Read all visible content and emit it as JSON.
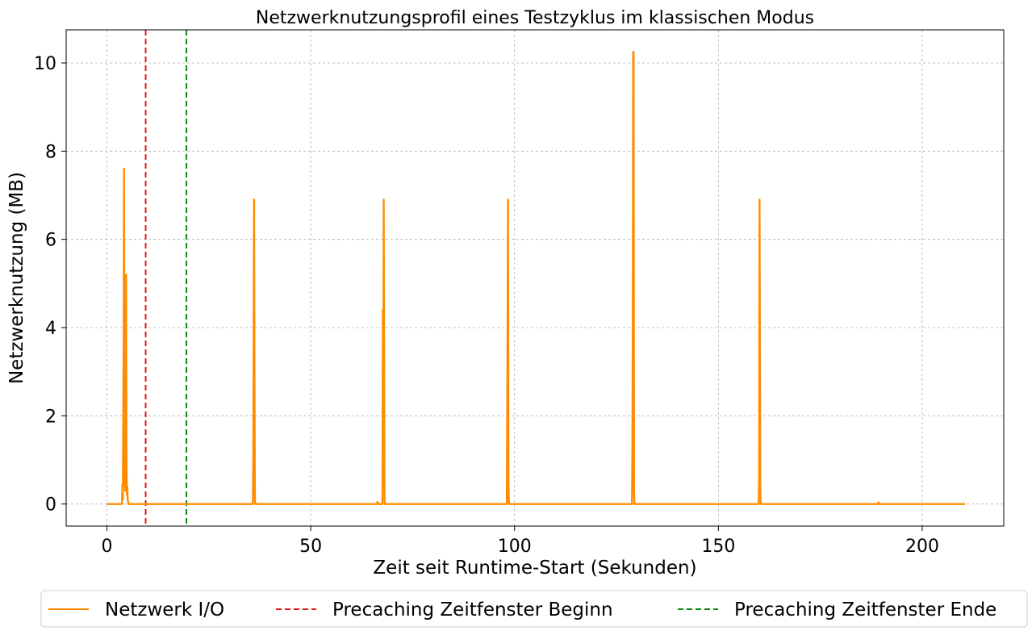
{
  "chart_data": {
    "type": "line",
    "title": "Netzwerknutzungsprofil eines Testzyklus im klassischen Modus",
    "xlabel": "Zeit seit Runtime-Start (Sekunden)",
    "ylabel": "Netzwerknutzung (MB)",
    "xlim": [
      -10,
      220
    ],
    "ylim": [
      -0.5,
      10.75
    ],
    "xticks": [
      0,
      50,
      100,
      150,
      200
    ],
    "yticks": [
      0,
      2,
      4,
      6,
      8,
      10
    ],
    "grid": true,
    "legend_position": "bottom-center",
    "series": [
      {
        "name": "Netzwerk I/O",
        "color": "#ff8c00",
        "x": [
          0,
          3.7,
          3.8,
          3.9,
          4.0,
          4.1,
          4.2,
          4.3,
          4.4,
          4.5,
          4.6,
          4.7,
          4.8,
          4.9,
          5.0,
          5.1,
          5.2,
          5.3,
          35.8,
          35.9,
          36.0,
          36.1,
          36.2,
          36.3,
          36.4,
          66.3,
          66.4,
          66.5,
          67.6,
          67.7,
          67.8,
          67.9,
          68.0,
          68.1,
          68.2,
          98.1,
          98.2,
          98.3,
          98.4,
          98.5,
          98.6,
          98.7,
          128.8,
          128.9,
          129.0,
          129.1,
          129.2,
          129.3,
          129.4,
          159.9,
          160.0,
          160.1,
          160.2,
          160.3,
          160.4,
          160.5,
          189.2,
          189.3,
          189.4,
          210.5
        ],
        "y": [
          0,
          0,
          0.45,
          0.1,
          1.9,
          3.5,
          7.6,
          2.0,
          0.5,
          0.3,
          4.5,
          5.2,
          0.9,
          0.2,
          0.4,
          0.1,
          0.05,
          0,
          0,
          0.9,
          3.5,
          6.9,
          3.0,
          0.1,
          0,
          0,
          0.05,
          0,
          0,
          4.4,
          0.8,
          6.9,
          3.5,
          0.1,
          0,
          0,
          2.1,
          4.25,
          6.9,
          0.5,
          0.05,
          0,
          0,
          1.1,
          4.0,
          10.25,
          10.25,
          0.3,
          0,
          0,
          0.6,
          6.9,
          3.4,
          0.2,
          0.05,
          0,
          0,
          0.04,
          0,
          0
        ]
      }
    ],
    "vlines": [
      {
        "name": "Precaching Zeitfenster Beginn",
        "x": 9.5,
        "color": "#e31a1c",
        "style": "dashed"
      },
      {
        "name": "Precaching Zeitfenster Ende",
        "x": 19.5,
        "color": "#118811",
        "style": "dashed"
      }
    ]
  }
}
